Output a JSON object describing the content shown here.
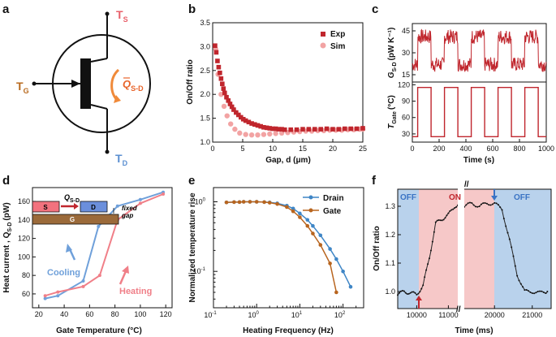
{
  "panel_letters": [
    "a",
    "b",
    "c",
    "d",
    "e",
    "f"
  ],
  "colors": {
    "exp": "#c0262d",
    "sim": "#f2a3a3",
    "source": "#e8606a",
    "gate": "#b86a1e",
    "drain": "#5b8fd1",
    "heating": "#f07f88",
    "cooling": "#6fa0da",
    "on_bg": "#f6c8c8",
    "off_bg": "#b9d2ec",
    "e_drain": "#3f86c6",
    "e_gate": "#b8651f",
    "s_block": "#f2727e",
    "d_block": "#6b8fdc",
    "g_block": "#9b6a3a"
  },
  "schematic": {
    "labels": {
      "ts_main": "T",
      "ts_sub": "S",
      "tg_main": "T",
      "tg_sub": "G",
      "td_main": "T",
      "td_sub": "D",
      "q_main": "Q",
      "q_sub": "S-D"
    }
  },
  "chart_data": [
    {
      "id": "b",
      "type": "scatter",
      "xlabel": "Gap, d (μm)",
      "ylabel": "On/Off ratio",
      "xlim": [
        0,
        25
      ],
      "ylim": [
        1.0,
        3.5
      ],
      "xticks": [
        "0",
        "5",
        "10",
        "15",
        "20",
        "25"
      ],
      "yticks": [
        "1.0",
        "1.5",
        "2.0",
        "2.5",
        "3.0",
        "3.5"
      ],
      "series": [
        {
          "name": "Exp",
          "marker": "square",
          "points": [
            [
              0.4,
              3.02
            ],
            [
              0.6,
              2.88
            ],
            [
              0.8,
              2.7
            ],
            [
              1.0,
              2.57
            ],
            [
              1.2,
              2.45
            ],
            [
              1.4,
              2.33
            ],
            [
              1.6,
              2.22
            ],
            [
              1.8,
              2.12
            ],
            [
              2.0,
              2.03
            ],
            [
              2.3,
              1.94
            ],
            [
              2.6,
              1.87
            ],
            [
              2.9,
              1.8
            ],
            [
              3.2,
              1.74
            ],
            [
              3.5,
              1.68
            ],
            [
              3.9,
              1.62
            ],
            [
              4.3,
              1.57
            ],
            [
              4.7,
              1.52
            ],
            [
              5.1,
              1.48
            ],
            [
              5.5,
              1.45
            ],
            [
              6.0,
              1.42
            ],
            [
              6.5,
              1.39
            ],
            [
              7.0,
              1.37
            ],
            [
              7.5,
              1.35
            ],
            [
              8.0,
              1.33
            ],
            [
              8.5,
              1.31
            ],
            [
              9.0,
              1.3
            ],
            [
              9.5,
              1.29
            ],
            [
              10.0,
              1.28
            ],
            [
              10.5,
              1.28
            ],
            [
              11.0,
              1.27
            ],
            [
              11.5,
              1.27
            ],
            [
              12.0,
              1.26
            ],
            [
              13.0,
              1.26
            ],
            [
              14.0,
              1.26
            ],
            [
              15.0,
              1.27
            ],
            [
              16.0,
              1.27
            ],
            [
              17.0,
              1.27
            ],
            [
              18.0,
              1.27
            ],
            [
              19.0,
              1.28
            ],
            [
              20.0,
              1.27
            ],
            [
              21.0,
              1.27
            ],
            [
              22.0,
              1.28
            ],
            [
              23.0,
              1.28
            ],
            [
              24.0,
              1.28
            ],
            [
              25.0,
              1.29
            ]
          ]
        },
        {
          "name": "Sim",
          "marker": "circle",
          "points": [
            [
              0.5,
              2.95
            ],
            [
              0.9,
              2.42
            ],
            [
              1.4,
              2.0
            ],
            [
              1.9,
              1.75
            ],
            [
              2.4,
              1.55
            ],
            [
              3.0,
              1.38
            ],
            [
              3.7,
              1.27
            ],
            [
              4.5,
              1.19
            ],
            [
              5.5,
              1.16
            ],
            [
              6.5,
              1.15
            ],
            [
              7.5,
              1.15
            ],
            [
              8.5,
              1.16
            ],
            [
              9.5,
              1.17
            ],
            [
              10.5,
              1.18
            ],
            [
              11.5,
              1.19
            ],
            [
              12.5,
              1.2
            ],
            [
              13.5,
              1.21
            ],
            [
              14.5,
              1.22
            ],
            [
              15.5,
              1.23
            ],
            [
              16.5,
              1.23
            ],
            [
              17.5,
              1.24
            ],
            [
              18.5,
              1.24
            ],
            [
              19.5,
              1.25
            ],
            [
              20.5,
              1.25
            ],
            [
              21.5,
              1.25
            ],
            [
              22.5,
              1.26
            ],
            [
              23.5,
              1.26
            ],
            [
              24.5,
              1.27
            ],
            [
              25.0,
              1.27
            ]
          ]
        }
      ]
    },
    {
      "id": "c_top",
      "type": "line",
      "ylabel_main": "G",
      "ylabel_sub": "S-D",
      "ylabel_unit": "(pW K⁻¹)",
      "xlim": [
        0,
        1000
      ],
      "ylim": [
        10,
        50
      ],
      "yticks": [
        "15",
        "30",
        "45"
      ],
      "series": [
        {
          "name": "G_S-D",
          "low": 22,
          "high": 41,
          "period": 200,
          "on_first": true
        }
      ]
    },
    {
      "id": "c_bottom",
      "type": "line",
      "xlabel": "Time (s)",
      "ylabel_main": "T",
      "ylabel_sub": "Gate",
      "ylabel_unit": "(°C)",
      "xlim": [
        0,
        1000
      ],
      "ylim": [
        15,
        125
      ],
      "xticks": [
        "0",
        "200",
        "400",
        "600",
        "800",
        "1000"
      ],
      "yticks": [
        "30",
        "60",
        "90",
        "120"
      ],
      "series": [
        {
          "name": "T_Gate",
          "x": [
            0,
            40,
            40,
            140,
            140,
            240,
            240,
            340,
            340,
            440,
            440,
            540,
            540,
            640,
            640,
            740,
            740,
            840,
            840,
            940,
            940,
            1000
          ],
          "y": [
            25,
            25,
            115,
            115,
            25,
            25,
            115,
            115,
            25,
            25,
            115,
            115,
            25,
            25,
            115,
            115,
            25,
            25,
            115,
            115,
            25,
            25
          ]
        }
      ]
    },
    {
      "id": "d",
      "type": "line",
      "xlabel_main": "Gate Temperature",
      "xlabel_unit": "(°C)",
      "ylabel_main": "Heat current , Q",
      "ylabel_sub": "S-D",
      "ylabel_unit": "(pW)",
      "xlim": [
        15,
        125
      ],
      "ylim": [
        45,
        175
      ],
      "xticks": [
        "20",
        "40",
        "60",
        "80",
        "100",
        "120"
      ],
      "yticks": [
        "60",
        "80",
        "100",
        "120",
        "140",
        "160"
      ],
      "series": [
        {
          "name": "Cooling",
          "x": [
            25,
            35,
            55,
            67,
            82,
            100,
            118
          ],
          "y": [
            55,
            58,
            74,
            133,
            155,
            162,
            170
          ]
        },
        {
          "name": "Heating",
          "x": [
            25,
            35,
            55,
            68,
            82,
            100,
            118
          ],
          "y": [
            58,
            62,
            68,
            80,
            140,
            158,
            168
          ]
        }
      ],
      "annotations": {
        "cooling": "Cooling",
        "heating": "Heating",
        "s": "S",
        "d": "D",
        "g": "G",
        "fixed": "fixed",
        "gap": "gap",
        "q_main": "Q",
        "q_sub": "S-D"
      }
    },
    {
      "id": "e",
      "type": "line",
      "xlabel": "Heating Frequency (Hz)",
      "ylabel": "Normalized temperature rise",
      "xscale": "log",
      "yscale": "log",
      "xlim": [
        0.1,
        300
      ],
      "ylim": [
        0.03,
        1.6
      ],
      "xticks": [
        {
          "v": 0.1,
          "base": "10",
          "exp": "-1"
        },
        {
          "v": 1,
          "base": "10",
          "exp": "0"
        },
        {
          "v": 10,
          "base": "10",
          "exp": "1"
        },
        {
          "v": 100,
          "base": "10",
          "exp": "2"
        }
      ],
      "yticks": [
        {
          "v": 0.1,
          "base": "10",
          "exp": "-1"
        },
        {
          "v": 1,
          "base": "10",
          "exp": "0"
        }
      ],
      "series": [
        {
          "name": "Drain",
          "x": [
            0.2,
            0.3,
            0.4,
            0.5,
            0.7,
            1,
            1.5,
            2,
            3,
            5,
            7,
            10,
            15,
            20,
            30,
            50,
            70,
            100,
            150
          ],
          "y": [
            0.98,
            0.99,
            0.99,
            1.0,
            1.0,
            1.0,
            0.99,
            0.98,
            0.95,
            0.88,
            0.8,
            0.68,
            0.55,
            0.45,
            0.33,
            0.21,
            0.15,
            0.1,
            0.06
          ]
        },
        {
          "name": "Gate",
          "x": [
            0.2,
            0.3,
            0.4,
            0.5,
            0.7,
            1,
            1.5,
            2,
            3,
            5,
            7,
            10,
            15,
            20,
            30,
            50,
            70
          ],
          "y": [
            0.98,
            0.99,
            0.99,
            1.0,
            1.0,
            1.0,
            0.99,
            0.97,
            0.93,
            0.84,
            0.73,
            0.6,
            0.45,
            0.35,
            0.24,
            0.13,
            0.05
          ]
        }
      ]
    },
    {
      "id": "f",
      "type": "line",
      "xlabel": "Time (ms)",
      "ylabel": "On/Off ratio",
      "ylim": [
        0.94,
        1.36
      ],
      "xticks": [
        "10000",
        "11000",
        "20000",
        "21000"
      ],
      "yticks": [
        "1.0",
        "1.1",
        "1.2",
        "1.3"
      ],
      "regions": [
        "OFF",
        "ON",
        "OFF"
      ],
      "series": [
        {
          "name": "ratio",
          "segments": [
            {
              "x": [
                9400,
                9600,
                9800,
                10000,
                10200,
                10400,
                10600,
                10800,
                11000,
                11200,
                11400
              ],
              "y": [
                0.99,
                1.0,
                0.995,
                0.99,
                1.02,
                1.12,
                1.24,
                1.255,
                1.27,
                1.3,
                1.31
              ]
            },
            {
              "x": [
                19200,
                19400,
                19600,
                19800,
                20000,
                20200,
                20400,
                20600,
                20800,
                21000,
                21200,
                21400
              ],
              "y": [
                1.3,
                1.31,
                1.3,
                1.31,
                1.31,
                1.29,
                1.18,
                1.06,
                1.0,
                1.0,
                0.995,
                1.0
              ]
            }
          ]
        }
      ]
    }
  ]
}
